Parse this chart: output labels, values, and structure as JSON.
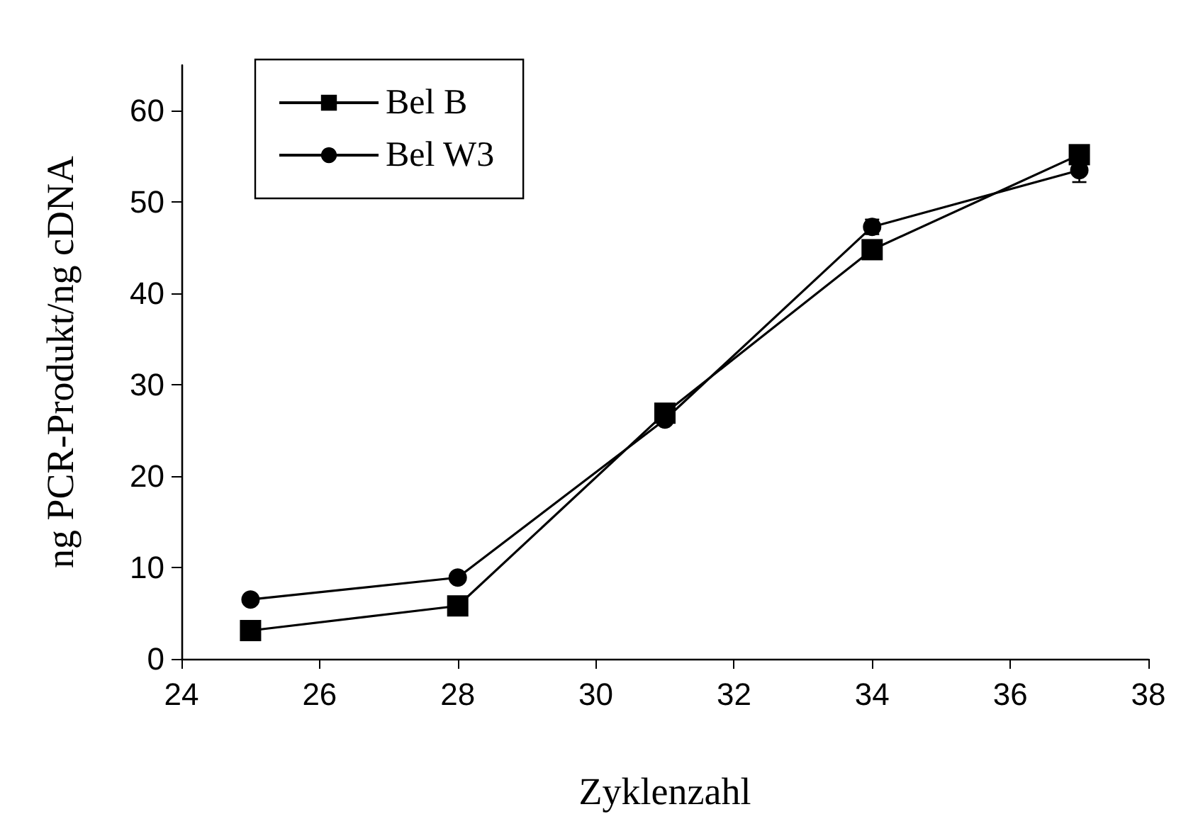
{
  "chart_data": {
    "type": "line",
    "xlabel": "Zyklenzahl",
    "ylabel": "ng PCR-Produkt/ng cDNA",
    "x": [
      25,
      28,
      31,
      34,
      37
    ],
    "series": [
      {
        "name": "Bel B",
        "color": "#000000",
        "marker": "square",
        "values": [
          3.1,
          5.8,
          26.9,
          44.8,
          55.2
        ],
        "errors": [
          null,
          null,
          null,
          1.0,
          null
        ]
      },
      {
        "name": "Bel W3",
        "color": "#000000",
        "marker": "circle",
        "values": [
          6.5,
          8.9,
          26.2,
          47.3,
          53.5
        ],
        "errors": [
          null,
          null,
          null,
          0.8,
          1.3
        ]
      }
    ],
    "xlim": [
      24,
      38
    ],
    "xticks": [
      24,
      26,
      28,
      30,
      32,
      34,
      36,
      38
    ],
    "ylim": [
      0,
      65
    ],
    "yticks": [
      0,
      10,
      20,
      30,
      40,
      50,
      60
    ],
    "grid": false,
    "legend": "top left",
    "line_style": "solid"
  }
}
